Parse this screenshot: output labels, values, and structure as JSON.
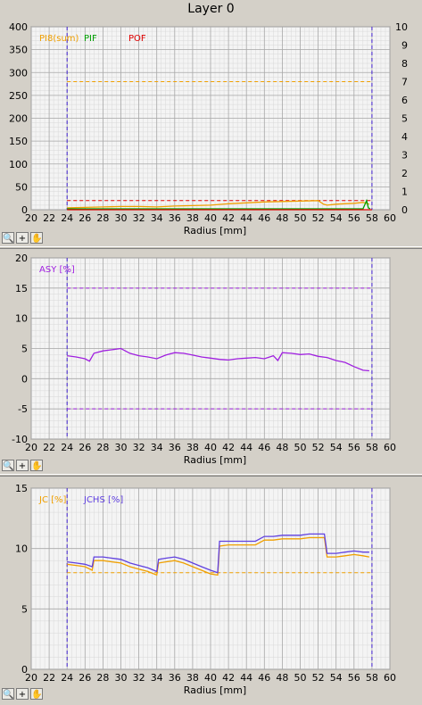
{
  "window": {
    "title": "Layer 0"
  },
  "toolbar": {
    "zoom_icon": "zoom-icon",
    "plus_label": "+",
    "hand_icon": "hand-icon"
  },
  "chart_data": [
    {
      "type": "line",
      "xlabel": "Radius [mm]",
      "xlim": [
        20,
        60
      ],
      "xticks": [
        20,
        22,
        24,
        26,
        28,
        30,
        32,
        34,
        36,
        38,
        40,
        42,
        44,
        46,
        48,
        50,
        52,
        54,
        56,
        58,
        60
      ],
      "ylim": [
        0,
        400
      ],
      "yticks": [
        0,
        50,
        100,
        150,
        200,
        250,
        300,
        350,
        400
      ],
      "y2lim": [
        0,
        10
      ],
      "y2ticks": [
        0,
        1,
        2,
        3,
        4,
        5,
        6,
        7,
        8,
        9,
        10
      ],
      "grid": true,
      "legend": "top-left",
      "vlines": [
        24,
        58
      ],
      "series": [
        {
          "name": "PI8(sum)",
          "color": "#f0a000",
          "axis": "left",
          "x": [
            24,
            26,
            28,
            30,
            32,
            34,
            36,
            38,
            40,
            42,
            44,
            46,
            48,
            50,
            52,
            52.6,
            53,
            54,
            56,
            57,
            57.7
          ],
          "values": [
            4,
            5,
            6,
            7,
            7,
            6,
            8,
            9,
            10,
            13,
            15,
            17,
            18,
            19,
            20,
            12,
            10,
            12,
            14,
            16,
            12
          ]
        },
        {
          "name": "PIF",
          "color": "#00a000",
          "axis": "right",
          "x": [
            24,
            30,
            40,
            50,
            57,
            57.4,
            57.6,
            57.8
          ],
          "values": [
            0.05,
            0.05,
            0.05,
            0.05,
            0.05,
            0.5,
            0.1,
            0.05
          ]
        },
        {
          "name": "POF",
          "color": "#e00000",
          "axis": "right",
          "x": [
            24,
            58
          ],
          "values": [
            0,
            0
          ]
        }
      ],
      "hlines": [
        {
          "value": 280,
          "color": "#f0a000"
        },
        {
          "value": 20,
          "color": "#e00000"
        }
      ]
    },
    {
      "type": "line",
      "xlabel": "Radius [mm]",
      "xlim": [
        20,
        60
      ],
      "xticks": [
        20,
        22,
        24,
        26,
        28,
        30,
        32,
        34,
        36,
        38,
        40,
        42,
        44,
        46,
        48,
        50,
        52,
        54,
        56,
        58,
        60
      ],
      "ylim": [
        -10,
        20
      ],
      "yticks": [
        -10,
        -5,
        0,
        5,
        10,
        15,
        20
      ],
      "grid": true,
      "legend": "top-left",
      "vlines": [
        24,
        58
      ],
      "series": [
        {
          "name": "ASY [%]",
          "color": "#a020e0",
          "x": [
            24,
            25,
            26,
            26.5,
            27,
            28,
            29,
            30,
            31,
            32,
            33,
            34,
            35,
            36,
            37,
            38,
            39,
            40,
            41,
            42,
            43,
            44,
            45,
            46,
            47,
            47.5,
            48,
            49,
            50,
            51,
            52,
            53,
            54,
            55,
            56,
            57,
            57.7
          ],
          "values": [
            3.8,
            3.6,
            3.3,
            2.9,
            4.2,
            4.6,
            4.8,
            5.0,
            4.2,
            3.8,
            3.6,
            3.3,
            3.9,
            4.3,
            4.2,
            3.9,
            3.6,
            3.4,
            3.2,
            3.1,
            3.3,
            3.4,
            3.5,
            3.3,
            3.8,
            3.0,
            4.3,
            4.2,
            4.0,
            4.1,
            3.7,
            3.5,
            3.0,
            2.7,
            2.0,
            1.4,
            1.3
          ]
        }
      ],
      "hlines": [
        {
          "value": 15,
          "color": "#a020e0"
        },
        {
          "value": -5,
          "color": "#a020e0"
        }
      ]
    },
    {
      "type": "line",
      "xlabel": "Radius [mm]",
      "xlim": [
        20,
        60
      ],
      "xticks": [
        20,
        22,
        24,
        26,
        28,
        30,
        32,
        34,
        36,
        38,
        40,
        42,
        44,
        46,
        48,
        50,
        52,
        54,
        56,
        58,
        60
      ],
      "ylim": [
        0,
        15
      ],
      "yticks": [
        0,
        5,
        10,
        15
      ],
      "grid": true,
      "legend": "top-left",
      "vlines": [
        24,
        58
      ],
      "series": [
        {
          "name": "JC [%]",
          "color": "#f0a000",
          "x": [
            24,
            25,
            26,
            26.8,
            27,
            28,
            29,
            30,
            31,
            32,
            33,
            34,
            34.2,
            35,
            36,
            37,
            38,
            39,
            40,
            40.8,
            41,
            42,
            43,
            44,
            45,
            46,
            47,
            48,
            49,
            50,
            51,
            52,
            52.7,
            53,
            54,
            55,
            56,
            57,
            57.7
          ],
          "values": [
            8.7,
            8.6,
            8.5,
            8.2,
            9.0,
            9.0,
            8.9,
            8.8,
            8.5,
            8.3,
            8.1,
            7.8,
            8.8,
            8.9,
            9.0,
            8.8,
            8.5,
            8.2,
            7.9,
            7.8,
            10.2,
            10.3,
            10.3,
            10.3,
            10.3,
            10.7,
            10.7,
            10.8,
            10.8,
            10.8,
            10.9,
            10.9,
            10.9,
            9.3,
            9.3,
            9.4,
            9.5,
            9.4,
            9.3
          ]
        },
        {
          "name": "JCHS [%]",
          "color": "#6040e0",
          "x": [
            24,
            25,
            26,
            26.8,
            27,
            28,
            29,
            30,
            31,
            32,
            33,
            34,
            34.2,
            35,
            36,
            37,
            38,
            39,
            40,
            40.8,
            41,
            42,
            43,
            44,
            45,
            46,
            47,
            48,
            49,
            50,
            51,
            52,
            52.7,
            53,
            54,
            55,
            56,
            57,
            57.7
          ],
          "values": [
            8.9,
            8.8,
            8.7,
            8.5,
            9.3,
            9.3,
            9.2,
            9.1,
            8.8,
            8.6,
            8.4,
            8.1,
            9.1,
            9.2,
            9.3,
            9.1,
            8.8,
            8.5,
            8.2,
            8.0,
            10.6,
            10.6,
            10.6,
            10.6,
            10.6,
            11.0,
            11.0,
            11.1,
            11.1,
            11.1,
            11.2,
            11.2,
            11.2,
            9.6,
            9.6,
            9.7,
            9.8,
            9.7,
            9.7
          ]
        }
      ],
      "hlines": [
        {
          "value": 8,
          "color": "#f0a000"
        }
      ]
    }
  ]
}
